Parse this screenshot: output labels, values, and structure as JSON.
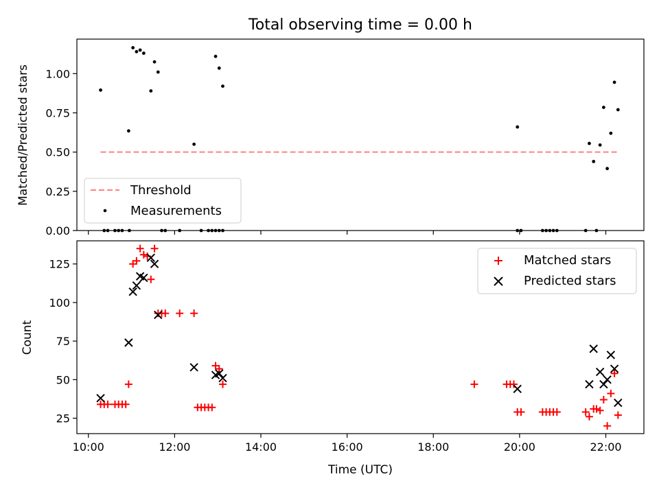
{
  "figure_title": "Total observing time = 0.00 h",
  "chart_data": [
    {
      "type": "scatter",
      "panel": "top",
      "ylabel": "Matched/Predicted stars",
      "ylim": [
        0,
        1.22
      ],
      "xlim": [
        "09:44",
        "22:53"
      ],
      "yticks": [
        0.0,
        0.25,
        0.5,
        0.75,
        1.0
      ],
      "ytick_labels": [
        "0.00",
        "0.25",
        "0.50",
        "0.75",
        "1.00"
      ],
      "grid": false,
      "legend_position": "lower-left",
      "threshold": {
        "name": "Threshold",
        "value": 0.5,
        "x_start": "10:17",
        "x_end": "22:17",
        "color": "#ff7f7f",
        "style": "dashed"
      },
      "series": [
        {
          "name": "Measurements",
          "color": "#000000",
          "marker": "dot",
          "points": [
            [
              "10:17",
              0.895
            ],
            [
              "10:56",
              0.635
            ],
            [
              "11:02",
              1.165
            ],
            [
              "11:07",
              1.14
            ],
            [
              "11:12",
              1.15
            ],
            [
              "11:17",
              1.13
            ],
            [
              "11:27",
              0.89
            ],
            [
              "11:32",
              1.075
            ],
            [
              "11:37",
              1.01
            ],
            [
              "12:27",
              0.55
            ],
            [
              "12:57",
              1.11
            ],
            [
              "13:02",
              1.035
            ],
            [
              "13:07",
              0.92
            ],
            [
              "19:57",
              0.66
            ],
            [
              "21:37",
              0.555
            ],
            [
              "21:43",
              0.44
            ],
            [
              "21:52",
              0.545
            ],
            [
              "21:57",
              0.785
            ],
            [
              "22:02",
              0.395
            ],
            [
              "22:07",
              0.62
            ],
            [
              "22:12",
              0.945
            ],
            [
              "22:17",
              0.77
            ],
            [
              "10:22",
              0.0
            ],
            [
              "10:27",
              0.0
            ],
            [
              "10:37",
              0.0
            ],
            [
              "10:42",
              0.0
            ],
            [
              "10:47",
              0.0
            ],
            [
              "10:57",
              0.0
            ],
            [
              "11:42",
              0.0
            ],
            [
              "11:47",
              0.0
            ],
            [
              "12:07",
              0.0
            ],
            [
              "12:37",
              0.0
            ],
            [
              "12:47",
              0.0
            ],
            [
              "12:52",
              0.0
            ],
            [
              "12:57",
              0.0
            ],
            [
              "13:02",
              0.0
            ],
            [
              "13:07",
              0.0
            ],
            [
              "19:57",
              0.0
            ],
            [
              "20:02",
              0.0
            ],
            [
              "20:32",
              0.0
            ],
            [
              "20:37",
              0.0
            ],
            [
              "20:42",
              0.0
            ],
            [
              "20:47",
              0.0
            ],
            [
              "20:52",
              0.0
            ],
            [
              "21:32",
              0.0
            ],
            [
              "21:47",
              0.0
            ]
          ]
        }
      ]
    },
    {
      "type": "scatter",
      "panel": "bottom",
      "xlabel": "Time (UTC)",
      "ylabel": "Count",
      "ylim": [
        15,
        140
      ],
      "xlim": [
        "09:44",
        "22:53"
      ],
      "xticks": [
        "10:00",
        "12:00",
        "14:00",
        "16:00",
        "18:00",
        "20:00",
        "22:00"
      ],
      "yticks": [
        25,
        50,
        75,
        100,
        125
      ],
      "ytick_labels": [
        "25",
        "50",
        "75",
        "100",
        "125"
      ],
      "grid": false,
      "legend_position": "upper-right",
      "series": [
        {
          "name": "Matched stars",
          "color": "#ff0000",
          "marker": "plus",
          "points": [
            [
              "10:17",
              34
            ],
            [
              "10:22",
              34
            ],
            [
              "10:27",
              34
            ],
            [
              "10:37",
              34
            ],
            [
              "10:42",
              34
            ],
            [
              "10:47",
              34
            ],
            [
              "10:52",
              34
            ],
            [
              "10:56",
              47
            ],
            [
              "11:02",
              125
            ],
            [
              "11:07",
              127
            ],
            [
              "11:12",
              135
            ],
            [
              "11:17",
              131
            ],
            [
              "11:22",
              130
            ],
            [
              "11:27",
              115
            ],
            [
              "11:32",
              135
            ],
            [
              "11:37",
              93
            ],
            [
              "11:42",
              93
            ],
            [
              "11:47",
              93
            ],
            [
              "12:07",
              93
            ],
            [
              "12:27",
              93
            ],
            [
              "12:32",
              32
            ],
            [
              "12:37",
              32
            ],
            [
              "12:42",
              32
            ],
            [
              "12:47",
              32
            ],
            [
              "12:52",
              32
            ],
            [
              "12:57",
              59
            ],
            [
              "13:02",
              57
            ],
            [
              "13:07",
              47
            ],
            [
              "18:57",
              47
            ],
            [
              "19:42",
              47
            ],
            [
              "19:47",
              47
            ],
            [
              "19:52",
              47
            ],
            [
              "19:57",
              29
            ],
            [
              "20:02",
              29
            ],
            [
              "20:32",
              29
            ],
            [
              "20:37",
              29
            ],
            [
              "20:42",
              29
            ],
            [
              "20:47",
              29
            ],
            [
              "20:52",
              29
            ],
            [
              "21:32",
              29
            ],
            [
              "21:37",
              26
            ],
            [
              "21:43",
              31
            ],
            [
              "21:47",
              31
            ],
            [
              "21:52",
              30
            ],
            [
              "21:57",
              37
            ],
            [
              "22:02",
              20
            ],
            [
              "22:07",
              41
            ],
            [
              "22:12",
              54
            ],
            [
              "22:17",
              27
            ]
          ]
        },
        {
          "name": "Predicted stars",
          "color": "#000000",
          "marker": "x",
          "points": [
            [
              "10:17",
              38
            ],
            [
              "10:56",
              74
            ],
            [
              "11:02",
              107
            ],
            [
              "11:07",
              111
            ],
            [
              "11:12",
              117
            ],
            [
              "11:17",
              116
            ],
            [
              "11:27",
              129
            ],
            [
              "11:32",
              125
            ],
            [
              "11:37",
              92
            ],
            [
              "12:27",
              58
            ],
            [
              "12:57",
              53
            ],
            [
              "13:02",
              54
            ],
            [
              "13:07",
              51
            ],
            [
              "19:57",
              44
            ],
            [
              "21:37",
              47
            ],
            [
              "21:43",
              70
            ],
            [
              "21:52",
              55
            ],
            [
              "21:57",
              47
            ],
            [
              "22:02",
              50
            ],
            [
              "22:07",
              66
            ],
            [
              "22:12",
              57
            ],
            [
              "22:17",
              35
            ]
          ]
        }
      ]
    }
  ]
}
